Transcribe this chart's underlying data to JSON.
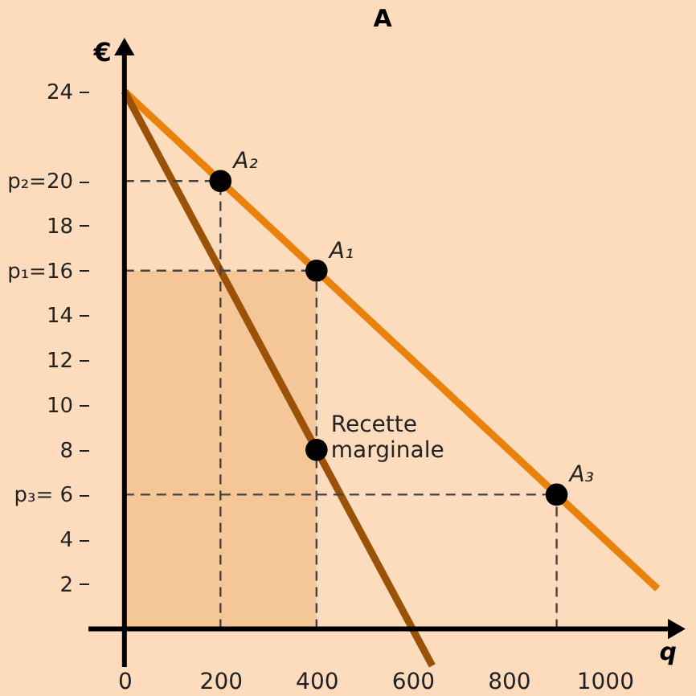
{
  "chart_data": {
    "type": "line",
    "title": "A",
    "xlabel": "q",
    "ylabel": "€",
    "xlim": [
      -75,
      1150
    ],
    "ylim": [
      -1.7,
      26
    ],
    "xticks": [
      0,
      200,
      400,
      600,
      800,
      1000
    ],
    "yticks": [
      2,
      4,
      {
        "value": 6,
        "label": "p₃=  6"
      },
      8,
      10,
      12,
      14,
      {
        "value": 16,
        "label": "p₁=16"
      },
      18,
      {
        "value": 20,
        "label": "p₂=20"
      },
      24
    ],
    "series": [
      {
        "type": "area",
        "color": "#f5c697",
        "x": [
          0,
          400
        ],
        "values": [
          16,
          16
        ]
      },
      {
        "color": "#e8820c",
        "x": [
          0,
          1110
        ],
        "values": [
          24,
          1.8
        ]
      },
      {
        "color": "#9a5209",
        "x": [
          0,
          641
        ],
        "values": [
          24,
          -1.64
        ]
      },
      {
        "type": "scatter",
        "color": "#000000",
        "x": [
          200,
          400,
          900
        ],
        "values": [
          20,
          16,
          6
        ],
        "value_labels": [
          "A₂",
          "A₁",
          "A₃"
        ]
      },
      {
        "type": "scatter",
        "color": "#000000",
        "x": [
          400
        ],
        "values": [
          8
        ]
      }
    ],
    "annotations": [
      "Recette\nmarginale"
    ]
  }
}
